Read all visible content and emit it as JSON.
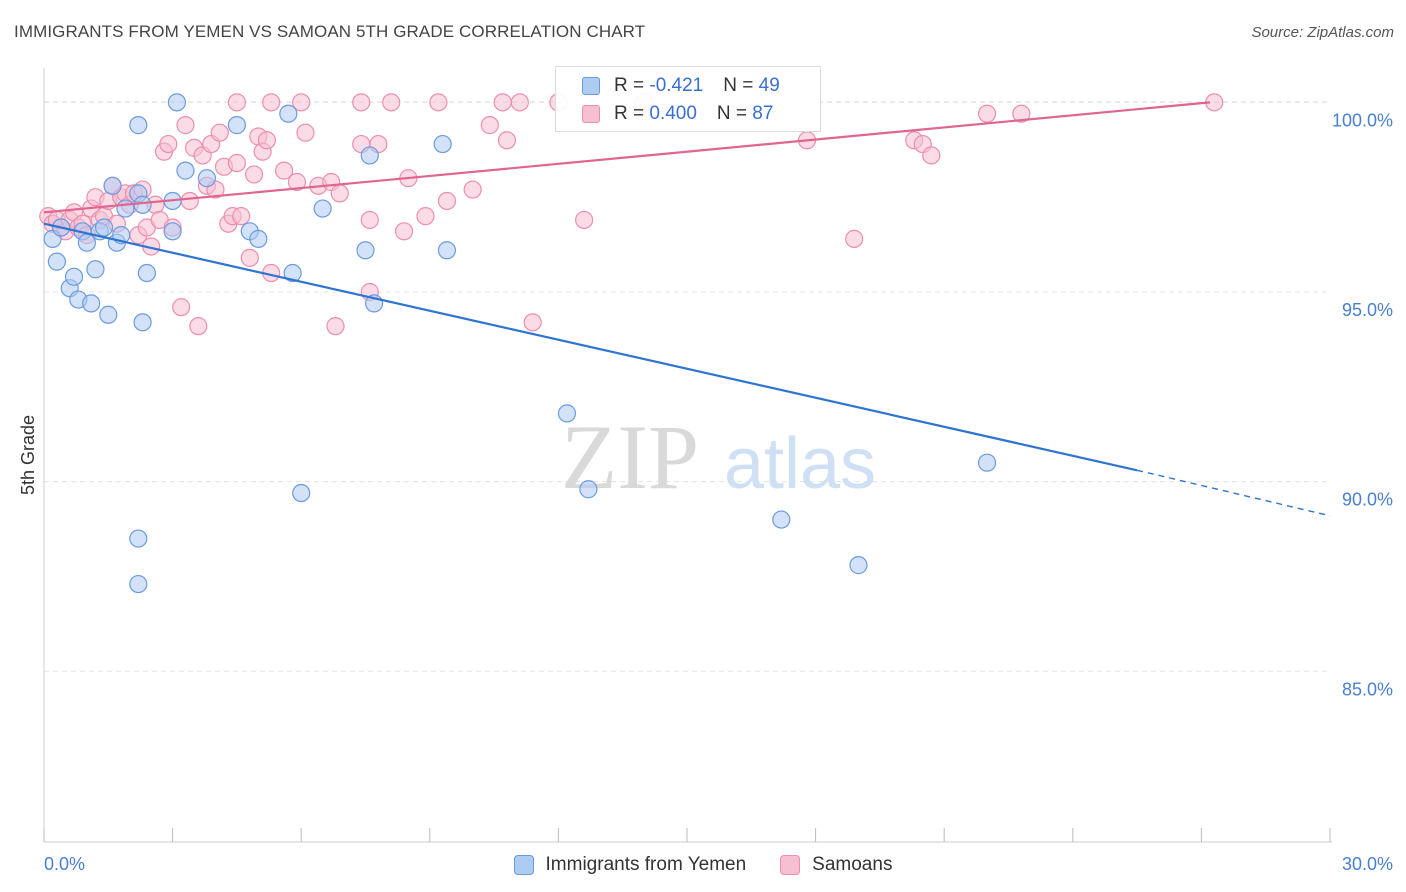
{
  "title": "IMMIGRANTS FROM YEMEN VS SAMOAN 5TH GRADE CORRELATION CHART",
  "source": "Source: ZipAtlas.com",
  "watermark": {
    "zip": "ZIP",
    "atlas": "atlas"
  },
  "legend": {
    "rows": [
      {
        "r_label": "R = ",
        "r_value": "-0.421",
        "n_label": "N = ",
        "n_value": "49"
      },
      {
        "r_label": "R = ",
        "r_value": "0.400",
        "n_label": "N = ",
        "n_value": "87"
      }
    ]
  },
  "colors": {
    "blue_fill": "#aecbf2",
    "blue_stroke": "#6a9be0",
    "blue_line": "#2f74d0",
    "pink_fill": "#f7bfd2",
    "pink_stroke": "#ec8eaf",
    "pink_line": "#e0658f",
    "grid": "#e3e3e3",
    "tick_label": "#4a7fd0"
  },
  "chart_data": {
    "type": "scatter",
    "title": "IMMIGRANTS FROM YEMEN VS SAMOAN 5TH GRADE CORRELATION CHART",
    "xlabel": "",
    "ylabel": "5th Grade",
    "xlim": [
      0,
      30
    ],
    "ylim": [
      80.5,
      100.8
    ],
    "x_ticks": [
      0,
      3,
      6,
      9,
      12,
      15,
      18,
      21,
      24,
      27,
      30
    ],
    "x_tick_labels": [
      "0.0%",
      "",
      "",
      "",
      "",
      "",
      "",
      "",
      "",
      "",
      "30.0%"
    ],
    "y_ticks": [
      85,
      90,
      95,
      100
    ],
    "y_tick_labels": [
      "85.0%",
      "90.0%",
      "95.0%",
      "100.0%"
    ],
    "grid": true,
    "legend_position": "top-center",
    "series": [
      {
        "name": "Immigrants from Yemen",
        "color": "#6a9be0",
        "trend": {
          "x": [
            0,
            25.5
          ],
          "y": [
            96.8,
            90.3
          ],
          "dashed_to": [
            30,
            89.1
          ]
        },
        "points": [
          [
            0.2,
            96.4
          ],
          [
            0.3,
            95.8
          ],
          [
            0.4,
            96.7
          ],
          [
            0.6,
            95.1
          ],
          [
            0.7,
            95.4
          ],
          [
            0.8,
            94.8
          ],
          [
            0.9,
            96.6
          ],
          [
            1.0,
            96.3
          ],
          [
            1.1,
            94.7
          ],
          [
            1.2,
            95.6
          ],
          [
            1.3,
            96.6
          ],
          [
            1.4,
            96.7
          ],
          [
            1.5,
            94.4
          ],
          [
            1.6,
            97.8
          ],
          [
            1.7,
            96.3
          ],
          [
            1.8,
            96.5
          ],
          [
            1.9,
            97.2
          ],
          [
            2.2,
            97.6
          ],
          [
            2.3,
            94.2
          ],
          [
            2.4,
            95.5
          ],
          [
            2.2,
            88.5
          ],
          [
            2.2,
            87.3
          ],
          [
            2.2,
            99.4
          ],
          [
            2.3,
            97.3
          ],
          [
            3.0,
            97.4
          ],
          [
            3.0,
            96.6
          ],
          [
            3.1,
            100.0
          ],
          [
            3.3,
            98.2
          ],
          [
            3.8,
            98.0
          ],
          [
            4.5,
            99.4
          ],
          [
            4.8,
            96.6
          ],
          [
            5.0,
            96.4
          ],
          [
            5.7,
            99.7
          ],
          [
            5.8,
            95.5
          ],
          [
            6.0,
            89.7
          ],
          [
            6.5,
            97.2
          ],
          [
            7.5,
            96.1
          ],
          [
            7.6,
            98.6
          ],
          [
            7.7,
            94.7
          ],
          [
            9.3,
            98.9
          ],
          [
            9.4,
            96.1
          ],
          [
            12.2,
            91.8
          ],
          [
            12.7,
            89.8
          ],
          [
            17.2,
            89.0
          ],
          [
            19.0,
            87.8
          ],
          [
            22.0,
            90.5
          ]
        ]
      },
      {
        "name": "Samoans",
        "color": "#ec8eaf",
        "trend": {
          "x": [
            0,
            27.2
          ],
          "y": [
            97.1,
            100.0
          ]
        },
        "points": [
          [
            0.1,
            97.0
          ],
          [
            0.2,
            96.8
          ],
          [
            0.3,
            96.9
          ],
          [
            0.4,
            96.7
          ],
          [
            0.5,
            96.6
          ],
          [
            0.6,
            96.9
          ],
          [
            0.7,
            97.1
          ],
          [
            0.8,
            96.7
          ],
          [
            0.9,
            96.8
          ],
          [
            1.0,
            96.5
          ],
          [
            1.1,
            97.2
          ],
          [
            1.2,
            97.5
          ],
          [
            1.3,
            96.9
          ],
          [
            1.4,
            97.0
          ],
          [
            1.5,
            97.4
          ],
          [
            1.6,
            97.8
          ],
          [
            1.7,
            96.8
          ],
          [
            1.8,
            97.5
          ],
          [
            1.9,
            97.6
          ],
          [
            2.0,
            97.3
          ],
          [
            2.1,
            97.6
          ],
          [
            2.2,
            96.5
          ],
          [
            2.3,
            97.7
          ],
          [
            2.4,
            96.7
          ],
          [
            2.5,
            96.2
          ],
          [
            2.6,
            97.3
          ],
          [
            2.7,
            96.9
          ],
          [
            2.8,
            98.7
          ],
          [
            2.9,
            98.9
          ],
          [
            3.0,
            96.7
          ],
          [
            3.2,
            94.6
          ],
          [
            3.3,
            99.4
          ],
          [
            3.4,
            97.4
          ],
          [
            3.5,
            98.8
          ],
          [
            3.6,
            94.1
          ],
          [
            3.7,
            98.6
          ],
          [
            3.8,
            97.8
          ],
          [
            3.9,
            98.9
          ],
          [
            4.0,
            97.7
          ],
          [
            4.1,
            99.2
          ],
          [
            4.2,
            98.3
          ],
          [
            4.3,
            96.8
          ],
          [
            4.4,
            97.0
          ],
          [
            4.5,
            98.4
          ],
          [
            4.6,
            97.0
          ],
          [
            4.8,
            95.9
          ],
          [
            4.9,
            98.1
          ],
          [
            5.0,
            99.1
          ],
          [
            5.1,
            98.7
          ],
          [
            5.2,
            99.0
          ],
          [
            5.3,
            95.5
          ],
          [
            5.6,
            98.2
          ],
          [
            5.9,
            97.9
          ],
          [
            6.1,
            99.2
          ],
          [
            6.4,
            97.8
          ],
          [
            6.7,
            97.9
          ],
          [
            6.8,
            94.1
          ],
          [
            6.9,
            97.6
          ],
          [
            7.4,
            98.9
          ],
          [
            7.6,
            95.0
          ],
          [
            7.6,
            96.9
          ],
          [
            7.8,
            98.9
          ],
          [
            8.4,
            96.6
          ],
          [
            8.5,
            98.0
          ],
          [
            8.9,
            97.0
          ],
          [
            9.4,
            97.4
          ],
          [
            10.0,
            97.7
          ],
          [
            10.4,
            99.4
          ],
          [
            10.8,
            99.0
          ],
          [
            11.4,
            94.2
          ],
          [
            12.0,
            100.0
          ],
          [
            12.6,
            96.9
          ],
          [
            14.0,
            100.0
          ],
          [
            17.8,
            99.0
          ],
          [
            18.9,
            96.4
          ],
          [
            20.3,
            99.0
          ],
          [
            20.5,
            98.9
          ],
          [
            20.7,
            98.6
          ],
          [
            22.0,
            99.7
          ],
          [
            22.8,
            99.7
          ],
          [
            27.3,
            100.0
          ],
          [
            4.5,
            100.0
          ],
          [
            5.3,
            100.0
          ],
          [
            6.0,
            100.0
          ],
          [
            7.4,
            100.0
          ],
          [
            8.1,
            100.0
          ],
          [
            9.2,
            100.0
          ],
          [
            10.7,
            100.0
          ],
          [
            11.1,
            100.0
          ]
        ]
      }
    ]
  },
  "bottom_legend": [
    "Immigrants from Yemen",
    "Samoans"
  ]
}
